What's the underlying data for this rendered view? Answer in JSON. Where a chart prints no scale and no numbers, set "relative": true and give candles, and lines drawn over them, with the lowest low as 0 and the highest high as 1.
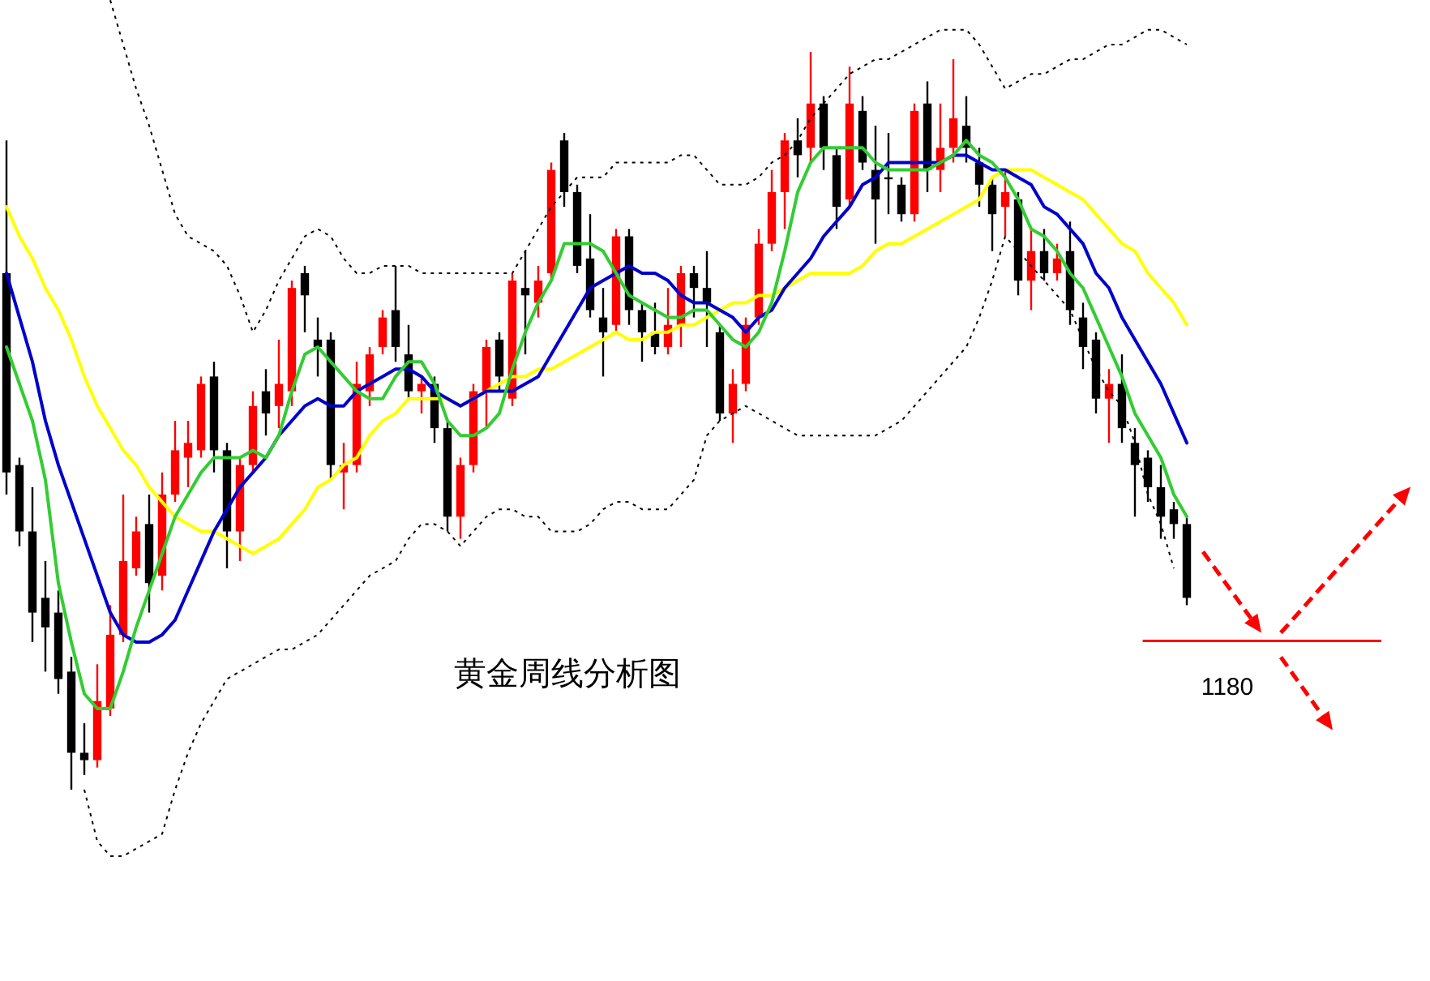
{
  "chart_data": {
    "type": "candlestick",
    "relative": true,
    "title": "黄金周线分析图",
    "annotations": [
      "1180"
    ],
    "categories": [
      null,
      null,
      null,
      null,
      null,
      null,
      null,
      null,
      null,
      null,
      null,
      null,
      null,
      null,
      null,
      null,
      null,
      null,
      null,
      null,
      null,
      null,
      null,
      null,
      null,
      null,
      null,
      null,
      null,
      null,
      null,
      null,
      null,
      null,
      null,
      null,
      null,
      null,
      null,
      null,
      null,
      null,
      null,
      null,
      null,
      null,
      null,
      null,
      null,
      null,
      null,
      null,
      null,
      null,
      null,
      null,
      null,
      null,
      null,
      null,
      null,
      null,
      null,
      null,
      null,
      null,
      null,
      null,
      null,
      null,
      null,
      null,
      null,
      null,
      null,
      null,
      null,
      null,
      null,
      null,
      null,
      null,
      null,
      null,
      null,
      null,
      null,
      null,
      null,
      null,
      null,
      null
    ],
    "ohlc": [
      [
        0.7,
        0.88,
        0.4,
        0.43
      ],
      [
        0.44,
        0.45,
        0.33,
        0.35
      ],
      [
        0.35,
        0.41,
        0.2,
        0.24
      ],
      [
        0.26,
        0.31,
        0.16,
        0.22
      ],
      [
        0.24,
        0.27,
        0.13,
        0.15
      ],
      [
        0.16,
        0.18,
        0,
        0.05
      ],
      [
        0.05,
        0.09,
        0.02,
        0.04
      ],
      [
        0.04,
        0.17,
        0.03,
        0.12
      ],
      [
        0.11,
        0.25,
        0.1,
        0.21
      ],
      [
        0.21,
        0.4,
        0.2,
        0.31
      ],
      [
        0.3,
        0.37,
        0.29,
        0.35
      ],
      [
        0.36,
        0.4,
        0.24,
        0.28
      ],
      [
        0.29,
        0.43,
        0.27,
        0.4
      ],
      [
        0.4,
        0.5,
        0.39,
        0.46
      ],
      [
        0.45,
        0.5,
        0.41,
        0.47
      ],
      [
        0.46,
        0.56,
        0.45,
        0.55
      ],
      [
        0.56,
        0.58,
        0.43,
        0.46
      ],
      [
        0.46,
        0.47,
        0.3,
        0.35
      ],
      [
        0.35,
        0.45,
        0.31,
        0.44
      ],
      [
        0.44,
        0.54,
        0.43,
        0.52
      ],
      [
        0.54,
        0.57,
        0.48,
        0.51
      ],
      [
        0.52,
        0.61,
        0.49,
        0.55
      ],
      [
        0.54,
        0.69,
        0.52,
        0.68
      ],
      [
        0.7,
        0.71,
        0.62,
        0.67
      ],
      [
        0.61,
        0.64,
        0.56,
        0.6
      ],
      [
        0.61,
        0.62,
        0.42,
        0.44
      ],
      [
        0.43,
        0.47,
        0.38,
        0.44
      ],
      [
        0.44,
        0.58,
        0.43,
        0.55
      ],
      [
        0.54,
        0.6,
        0.52,
        0.59
      ],
      [
        0.6,
        0.65,
        0.59,
        0.64
      ],
      [
        0.65,
        0.71,
        0.58,
        0.6
      ],
      [
        0.59,
        0.63,
        0.53,
        0.54
      ],
      [
        0.54,
        0.56,
        0.51,
        0.55
      ],
      [
        0.55,
        0.56,
        0.47,
        0.49
      ],
      [
        0.49,
        0.5,
        0.35,
        0.37
      ],
      [
        0.37,
        0.45,
        0.34,
        0.44
      ],
      [
        0.44,
        0.55,
        0.43,
        0.54
      ],
      [
        0.54,
        0.61,
        0.49,
        0.6
      ],
      [
        0.61,
        0.62,
        0.54,
        0.56
      ],
      [
        0.53,
        0.7,
        0.52,
        0.69
      ],
      [
        0.68,
        0.73,
        0.59,
        0.67
      ],
      [
        0.66,
        0.71,
        0.64,
        0.69
      ],
      [
        0.7,
        0.85,
        0.69,
        0.84
      ],
      [
        0.88,
        0.89,
        0.79,
        0.81
      ],
      [
        0.81,
        0.82,
        0.7,
        0.71
      ],
      [
        0.72,
        0.78,
        0.64,
        0.65
      ],
      [
        0.64,
        0.68,
        0.56,
        0.62
      ],
      [
        0.63,
        0.76,
        0.62,
        0.75
      ],
      [
        0.75,
        0.76,
        0.63,
        0.65
      ],
      [
        0.65,
        0.66,
        0.58,
        0.62
      ],
      [
        0.62,
        0.66,
        0.59,
        0.6
      ],
      [
        0.6,
        0.68,
        0.59,
        0.63
      ],
      [
        0.63,
        0.71,
        0.6,
        0.7
      ],
      [
        0.7,
        0.71,
        0.64,
        0.68
      ],
      [
        0.68,
        0.73,
        0.6,
        0.66
      ],
      [
        0.62,
        0.63,
        0.5,
        0.51
      ],
      [
        0.51,
        0.57,
        0.47,
        0.55
      ],
      [
        0.55,
        0.64,
        0.54,
        0.63
      ],
      [
        0.64,
        0.76,
        0.63,
        0.74
      ],
      [
        0.74,
        0.84,
        0.73,
        0.81
      ],
      [
        0.81,
        0.89,
        0.76,
        0.88
      ],
      [
        0.88,
        0.91,
        0.83,
        0.86
      ],
      [
        0.87,
        1,
        0.85,
        0.93
      ],
      [
        0.93,
        0.94,
        0.84,
        0.87
      ],
      [
        0.86,
        0.87,
        0.76,
        0.79
      ],
      [
        0.8,
        0.98,
        0.79,
        0.93
      ],
      [
        0.92,
        0.94,
        0.84,
        0.85
      ],
      [
        0.84,
        0.9,
        0.74,
        0.8
      ],
      [
        0.83,
        0.89,
        0.78,
        0.83
      ],
      [
        0.82,
        0.83,
        0.77,
        0.78
      ],
      [
        0.78,
        0.93,
        0.77,
        0.92
      ],
      [
        0.93,
        0.96,
        0.81,
        0.84
      ],
      [
        0.84,
        0.93,
        0.81,
        0.87
      ],
      [
        0.87,
        0.99,
        0.85,
        0.91
      ],
      [
        0.9,
        0.94,
        0.85,
        0.87
      ],
      [
        0.85,
        0.87,
        0.79,
        0.82
      ],
      [
        0.82,
        0.83,
        0.73,
        0.78
      ],
      [
        0.79,
        0.84,
        0.75,
        0.81
      ],
      [
        0.8,
        0.81,
        0.67,
        0.69
      ],
      [
        0.69,
        0.76,
        0.65,
        0.73
      ],
      [
        0.73,
        0.76,
        0.69,
        0.7
      ],
      [
        0.7,
        0.74,
        0.69,
        0.72
      ],
      [
        0.73,
        0.77,
        0.63,
        0.65
      ],
      [
        0.64,
        0.66,
        0.57,
        0.6
      ],
      [
        0.61,
        0.62,
        0.51,
        0.53
      ],
      [
        0.53,
        0.57,
        0.47,
        0.55
      ],
      [
        0.55,
        0.59,
        0.47,
        0.49
      ],
      [
        0.47,
        0.49,
        0.37,
        0.44
      ],
      [
        0.45,
        0.46,
        0.39,
        0.41
      ],
      [
        0.41,
        0.44,
        0.34,
        0.37
      ],
      [
        0.38,
        0.39,
        0.34,
        0.36
      ],
      [
        0.36,
        0.37,
        0.25,
        0.26
      ]
    ],
    "colors": [
      "#000000",
      "#000000",
      "#000000",
      "#000000",
      "#000000",
      "#000000",
      "#000000",
      "#ff0000",
      "#ff0000",
      "#ff0000",
      "#ff0000",
      "#000000",
      "#ff0000",
      "#ff0000",
      "#ff0000",
      "#ff0000",
      "#000000",
      "#000000",
      "#ff0000",
      "#ff0000",
      "#000000",
      "#ff0000",
      "#ff0000",
      "#000000",
      "#000000",
      "#000000",
      "#ff0000",
      "#ff0000",
      "#ff0000",
      "#ff0000",
      "#000000",
      "#000000",
      "#ff0000",
      "#000000",
      "#000000",
      "#ff0000",
      "#ff0000",
      "#ff0000",
      "#000000",
      "#ff0000",
      "#000000",
      "#ff0000",
      "#ff0000",
      "#000000",
      "#000000",
      "#000000",
      "#000000",
      "#ff0000",
      "#000000",
      "#000000",
      "#000000",
      "#ff0000",
      "#ff0000",
      "#000000",
      "#000000",
      "#000000",
      "#ff0000",
      "#ff0000",
      "#ff0000",
      "#ff0000",
      "#ff0000",
      "#000000",
      "#ff0000",
      "#000000",
      "#000000",
      "#ff0000",
      "#000000",
      "#000000",
      "#000000",
      "#000000",
      "#ff0000",
      "#000000",
      "#ff0000",
      "#ff0000",
      "#000000",
      "#000000",
      "#000000",
      "#ff0000",
      "#000000",
      "#ff0000",
      "#000000",
      "#ff0000",
      "#000000",
      "#000000",
      "#000000",
      "#ff0000",
      "#000000",
      "#000000",
      "#000000",
      "#000000",
      "#000000",
      "#000000"
    ],
    "series": [
      {
        "type": "line",
        "color": "#ffff00",
        "line_style": "solid",
        "values": [
          0.79,
          0.75,
          0.72,
          0.68,
          0.65,
          0.61,
          0.56,
          0.52,
          0.49,
          0.46,
          0.44,
          0.41,
          0.39,
          0.37,
          0.36,
          0.35,
          0.35,
          0.34,
          0.33,
          0.32,
          0.33,
          0.34,
          0.36,
          0.38,
          0.41,
          0.42,
          0.44,
          0.45,
          0.48,
          0.5,
          0.51,
          0.53,
          0.53,
          0.53,
          0.53,
          0.52,
          0.53,
          0.54,
          0.55,
          0.56,
          0.56,
          0.57,
          0.57,
          0.58,
          0.59,
          0.6,
          0.61,
          0.62,
          0.61,
          0.61,
          0.62,
          0.62,
          0.63,
          0.63,
          0.64,
          0.65,
          0.66,
          0.66,
          0.67,
          0.67,
          0.68,
          0.69,
          0.7,
          0.7,
          0.7,
          0.7,
          0.71,
          0.73,
          0.74,
          0.74,
          0.75,
          0.76,
          0.77,
          0.78,
          0.79,
          0.8,
          0.83,
          0.84,
          0.84,
          0.84,
          0.83,
          0.82,
          0.81,
          0.8,
          0.78,
          0.76,
          0.74,
          0.73,
          0.7,
          0.68,
          0.66,
          0.63
        ]
      },
      {
        "type": "line",
        "color": "#0000cc",
        "line_style": "solid",
        "values": [
          0.7,
          0.64,
          0.58,
          0.5,
          0.44,
          0.39,
          0.34,
          0.29,
          0.24,
          0.21,
          0.2,
          0.2,
          0.21,
          0.23,
          0.27,
          0.31,
          0.35,
          0.38,
          0.41,
          0.43,
          0.45,
          0.48,
          0.5,
          0.52,
          0.53,
          0.52,
          0.52,
          0.54,
          0.55,
          0.56,
          0.57,
          0.57,
          0.56,
          0.54,
          0.53,
          0.52,
          0.53,
          0.54,
          0.54,
          0.54,
          0.55,
          0.56,
          0.59,
          0.62,
          0.65,
          0.68,
          0.69,
          0.7,
          0.71,
          0.7,
          0.7,
          0.69,
          0.67,
          0.66,
          0.66,
          0.65,
          0.64,
          0.62,
          0.64,
          0.65,
          0.68,
          0.7,
          0.72,
          0.75,
          0.77,
          0.79,
          0.82,
          0.83,
          0.85,
          0.85,
          0.85,
          0.85,
          0.85,
          0.86,
          0.86,
          0.85,
          0.84,
          0.84,
          0.83,
          0.82,
          0.79,
          0.78,
          0.76,
          0.74,
          0.7,
          0.68,
          0.64,
          0.61,
          0.58,
          0.55,
          0.51,
          0.47
        ]
      },
      {
        "type": "line",
        "color": "#33cc33",
        "line_style": "solid",
        "values": [
          0.6,
          0.55,
          0.5,
          0.42,
          0.28,
          0.2,
          0.13,
          0.11,
          0.11,
          0.16,
          0.22,
          0.27,
          0.32,
          0.37,
          0.4,
          0.43,
          0.45,
          0.45,
          0.45,
          0.46,
          0.45,
          0.48,
          0.54,
          0.59,
          0.6,
          0.58,
          0.56,
          0.54,
          0.53,
          0.53,
          0.56,
          0.58,
          0.58,
          0.55,
          0.5,
          0.48,
          0.48,
          0.49,
          0.51,
          0.57,
          0.62,
          0.66,
          0.69,
          0.74,
          0.74,
          0.74,
          0.73,
          0.7,
          0.67,
          0.66,
          0.65,
          0.64,
          0.64,
          0.65,
          0.65,
          0.63,
          0.61,
          0.6,
          0.62,
          0.66,
          0.73,
          0.81,
          0.85,
          0.87,
          0.87,
          0.87,
          0.87,
          0.85,
          0.84,
          0.84,
          0.84,
          0.84,
          0.85,
          0.86,
          0.88,
          0.86,
          0.85,
          0.83,
          0.8,
          0.76,
          0.75,
          0.73,
          0.7,
          0.68,
          0.64,
          0.6,
          0.56,
          0.51,
          0.48,
          0.45,
          0.4,
          0.37
        ]
      },
      {
        "type": "line",
        "color": "#000000",
        "line_style": "dotted",
        "values": [
          null,
          null,
          null,
          null,
          null,
          null,
          null,
          null,
          1.07,
          1.01,
          0.95,
          0.9,
          0.84,
          0.78,
          0.75,
          0.74,
          0.73,
          0.71,
          0.67,
          0.62,
          0.65,
          0.69,
          0.72,
          0.75,
          0.76,
          0.75,
          0.72,
          0.7,
          0.7,
          0.71,
          0.71,
          0.71,
          0.7,
          0.7,
          0.7,
          0.7,
          0.7,
          0.7,
          0.7,
          0.7,
          0.73,
          0.76,
          0.79,
          0.81,
          0.83,
          0.83,
          0.83,
          0.85,
          0.85,
          0.85,
          0.85,
          0.85,
          0.86,
          0.86,
          0.84,
          0.82,
          0.82,
          0.82,
          0.83,
          0.85,
          0.86,
          0.88,
          0.91,
          0.93,
          0.95,
          0.97,
          0.98,
          0.99,
          0.99,
          1.0,
          1.01,
          1.02,
          1.03,
          1.03,
          1.03,
          1.01,
          0.98,
          0.95,
          0.96,
          0.97,
          0.97,
          0.98,
          0.99,
          0.99,
          1.0,
          1.01,
          1.01,
          1.02,
          1.03,
          1.03,
          1.02,
          1.01
        ]
      },
      {
        "type": "line",
        "color": "#000000",
        "line_style": "dotted",
        "values": [
          null,
          null,
          null,
          null,
          null,
          null,
          0,
          -0.07,
          -0.09,
          -0.09,
          -0.08,
          -0.07,
          -0.06,
          0,
          0.05,
          0.09,
          0.12,
          0.15,
          0.16,
          0.17,
          0.18,
          0.19,
          0.19,
          0.2,
          0.21,
          0.23,
          0.25,
          0.27,
          0.29,
          0.3,
          0.31,
          0.34,
          0.36,
          0.36,
          0.35,
          0.33,
          0.35,
          0.37,
          0.38,
          0.38,
          0.37,
          0.37,
          0.35,
          0.35,
          0.35,
          0.36,
          0.38,
          0.39,
          0.39,
          0.38,
          0.38,
          0.38,
          0.4,
          0.42,
          0.48,
          0.5,
          0.51,
          0.52,
          0.51,
          0.5,
          0.49,
          0.48,
          0.48,
          0.48,
          0.48,
          0.48,
          0.48,
          0.48,
          0.49,
          0.5,
          0.52,
          0.54,
          0.56,
          0.58,
          0.6,
          0.64,
          0.69,
          0.75,
          0.73,
          0.71,
          0.69,
          0.67,
          0.65,
          0.61,
          0.57,
          0.54,
          0.52,
          0.47,
          0.4,
          0.36,
          0.3,
          null
        ]
      }
    ]
  }
}
